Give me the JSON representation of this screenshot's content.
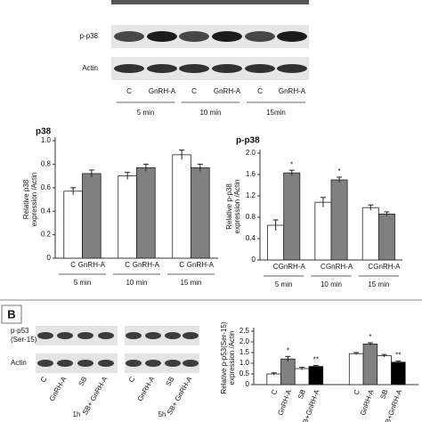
{
  "blots": {
    "top": {
      "rows": [
        "p-p38",
        "Actin"
      ],
      "lanes": [
        "C",
        "GnRH-A",
        "C",
        "GnRH-A",
        "C",
        "GnRH-A"
      ],
      "groups": [
        "5 min",
        "10 min",
        "15min"
      ]
    },
    "b": {
      "label": "B",
      "rows": [
        [
          "p-p53",
          "(Ser-15)"
        ],
        [
          "Actin"
        ]
      ],
      "lanes": [
        "C",
        "GnRH-A",
        "SB",
        "SB+ GnRH-A",
        "C",
        "GnRH-A",
        "SB",
        "SB+ GnRH-A"
      ],
      "groups": [
        "1h",
        "5h"
      ]
    }
  },
  "chart_data": [
    {
      "type": "bar",
      "title": "p38",
      "y_label": [
        "Relative p38",
        "expression /Actin"
      ],
      "categories": [
        "C",
        "GnRH-A",
        "C",
        "GnRH-A",
        "C",
        "GnRH-A"
      ],
      "groups": [
        "5 min",
        "10 min",
        "15 min"
      ],
      "values": [
        0.57,
        0.72,
        0.7,
        0.77,
        0.88,
        0.77
      ],
      "errors": [
        0.03,
        0.03,
        0.03,
        0.03,
        0.04,
        0.03
      ],
      "colors": [
        "#ffffff",
        "#808080",
        "#ffffff",
        "#808080",
        "#ffffff",
        "#808080"
      ],
      "ylim": [
        0,
        1
      ],
      "yticks": [
        0,
        0.2,
        0.4,
        0.6,
        0.8,
        {
          "value": 1,
          "label": "1.0"
        }
      ]
    },
    {
      "type": "bar",
      "title": "p-p38",
      "y_label": [
        "Relative p-p38",
        "expression /Actin"
      ],
      "categories": [
        "C",
        "GnRH-A",
        "C",
        "GnRH-A",
        "C",
        "GnRH-A"
      ],
      "groups": [
        "5 min",
        "10 min",
        "15 min"
      ],
      "values": [
        0.65,
        1.63,
        1.08,
        1.5,
        0.98,
        0.86
      ],
      "errors": [
        0.1,
        0.05,
        0.09,
        0.05,
        0.05,
        0.04
      ],
      "colors": [
        "#ffffff",
        "#808080",
        "#ffffff",
        "#808080",
        "#ffffff",
        "#808080"
      ],
      "annotations": [
        null,
        "*",
        null,
        "*",
        null,
        null
      ],
      "ylim": [
        0,
        2
      ],
      "yticks": [
        0,
        0.4,
        0.8,
        1.2,
        1.6,
        {
          "value": 2,
          "label": "2.0"
        }
      ]
    },
    {
      "type": "bar",
      "y_label": [
        "Relative p-p53(Ser-15)",
        "expression /Actin"
      ],
      "categories": [
        "C",
        "GnRH-A",
        "SB",
        "SB+GnRH-A",
        "C",
        "GnRH-A",
        "SB",
        "SB+GnRH-A"
      ],
      "values": [
        0.5,
        1.2,
        0.75,
        0.85,
        1.45,
        1.9,
        1.35,
        1.05
      ],
      "errors": [
        0.05,
        0.12,
        0.06,
        0.05,
        0.05,
        0.06,
        0.06,
        0.05
      ],
      "colors": [
        "#ffffff",
        "#808080",
        "#ffffff",
        "#000000",
        "#ffffff",
        "#808080",
        "#ffffff",
        "#000000"
      ],
      "annotations": [
        null,
        "*",
        null,
        "**",
        null,
        "*",
        null,
        "**"
      ],
      "ylim": [
        0,
        2.5
      ],
      "yticks": [
        0,
        0.5,
        {
          "value": 1,
          "label": "1.0"
        },
        1.5,
        {
          "value": 2,
          "label": "2.0"
        },
        2.5
      ]
    }
  ]
}
